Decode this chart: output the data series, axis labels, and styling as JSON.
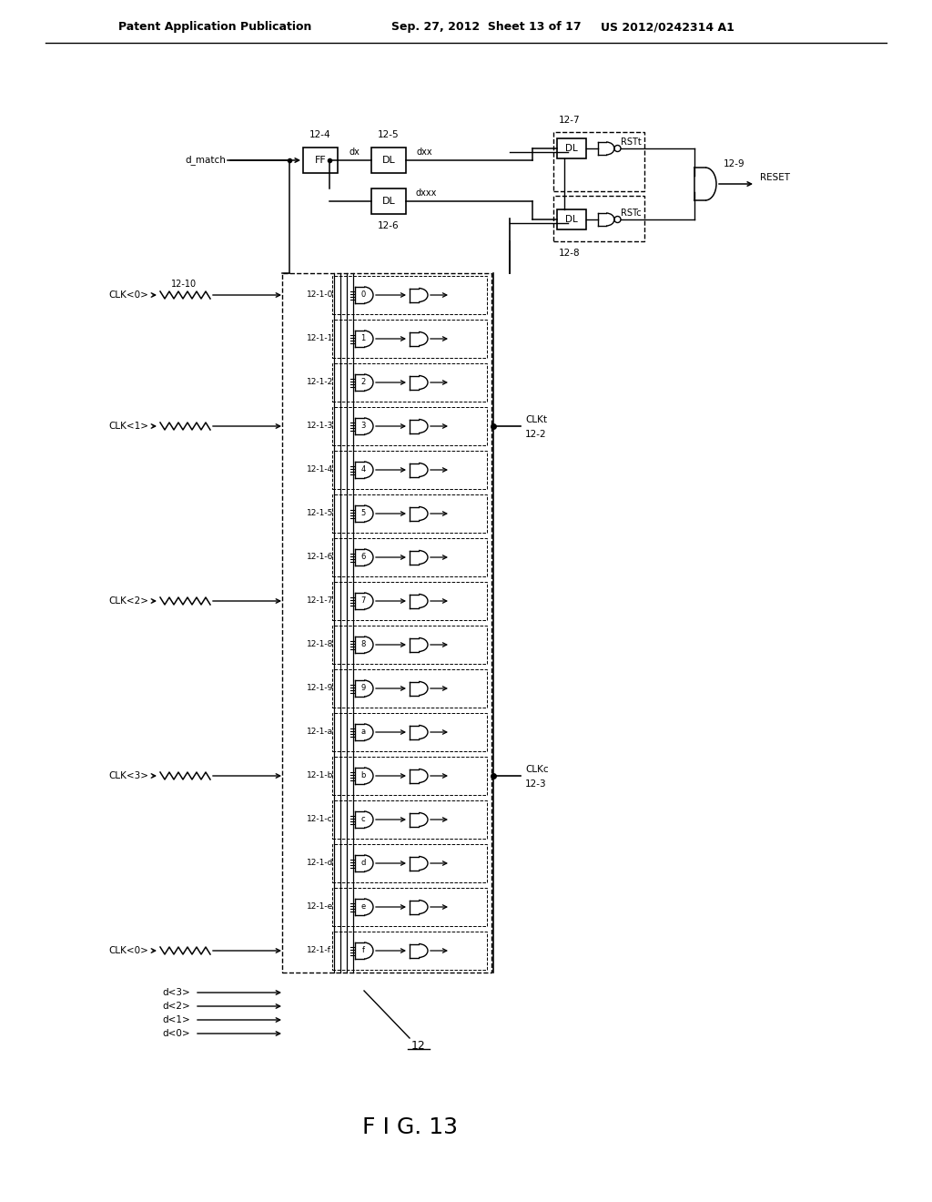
{
  "title_left": "Patent Application Publication",
  "title_center": "Sep. 27, 2012  Sheet 13 of 17",
  "title_right": "US 2012/0242314 A1",
  "figure_label": "F I G. 13",
  "background_color": "#ffffff",
  "rows": [
    "0",
    "1",
    "2",
    "3",
    "4",
    "5",
    "6",
    "7",
    "8",
    "9",
    "a",
    "b",
    "c",
    "d",
    "e",
    "f"
  ],
  "row_labels": [
    "12-1-0",
    "12-1-1",
    "12-1-2",
    "12-1-3",
    "12-1-4",
    "12-1-5",
    "12-1-6",
    "12-1-7",
    "12-1-8",
    "12-1-9",
    "12-1-a",
    "12-1-b",
    "12-1-c",
    "12-1-d",
    "12-1-e",
    "12-1-f"
  ],
  "clk_labels": [
    "CLK<0>",
    "CLK<1>",
    "CLK<2>",
    "CLK<3>",
    "CLK<0>"
  ],
  "clk_rows": [
    0,
    3,
    7,
    11,
    15
  ],
  "d_labels": [
    "d<3>",
    "d<2>",
    "d<1>",
    "d<0>"
  ]
}
